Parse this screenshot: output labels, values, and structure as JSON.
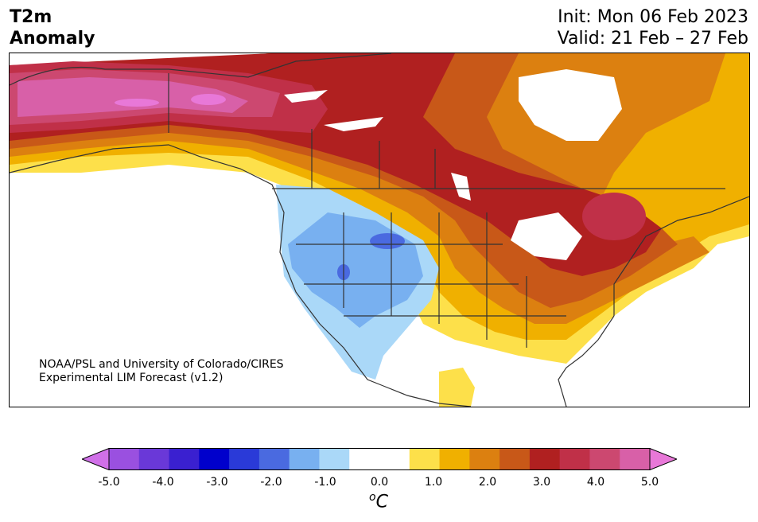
{
  "header": {
    "left_line1": "T2m",
    "left_line2": "Anomaly",
    "init": "Init: Mon 06 Feb 2023",
    "valid": "Valid: 21 Feb – 27 Feb"
  },
  "credit": {
    "line1": "NOAA/PSL and University of Colorado/CIRES",
    "line2": "Experimental LIM Forecast (v1.2)"
  },
  "colorbar": {
    "unit": "C",
    "unit_prefix": "o",
    "tick_labels": [
      "-5.0",
      "-4.0",
      "-3.0",
      "-2.0",
      "-1.0",
      "0.0",
      "1.0",
      "2.0",
      "3.0",
      "4.0",
      "5.0"
    ],
    "colors": [
      "#d070e8",
      "#9a50e0",
      "#6a38d8",
      "#3a20d0",
      "#0000cc",
      "#2a3ad8",
      "#4a6ae0",
      "#78b0f0",
      "#aad8f8",
      "#ffffff",
      "#ffffff",
      "#fde04a",
      "#f0b000",
      "#dc8010",
      "#c85818",
      "#b02020",
      "#c03048",
      "#cc4870",
      "#d860a8",
      "#e878d8"
    ]
  }
}
